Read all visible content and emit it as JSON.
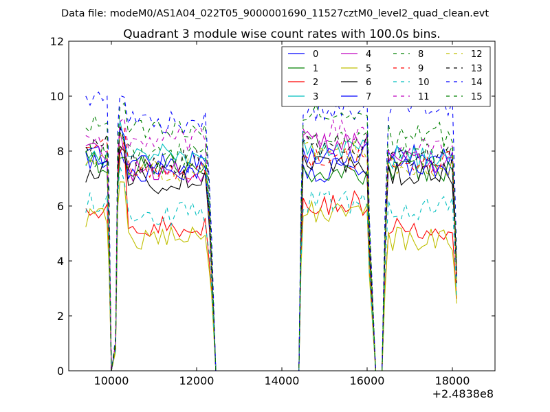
{
  "suptitle": "Data file: modeM0/AS1A04_022T05_9000001690_11527cztM0_level2_quad_clean.evt",
  "chart_data": {
    "type": "line",
    "title": "Quadrant 3 module wise count rates with 100.0s bins.",
    "xlabel": "",
    "ylabel": "",
    "xlim": [
      9000,
      19000
    ],
    "ylim": [
      0,
      12
    ],
    "x_offset_label": "+2.4838e8",
    "xticks": [
      10000,
      12000,
      14000,
      16000,
      18000
    ],
    "xtick_labels": [
      "10000",
      "12000",
      "14000",
      "16000",
      "18000"
    ],
    "yticks": [
      0,
      2,
      4,
      6,
      8,
      10,
      12
    ],
    "ytick_labels": [
      "0",
      "2",
      "4",
      "6",
      "8",
      "10",
      "12"
    ],
    "grid": false,
    "legend_position": "upper-right",
    "legend_columns": 4,
    "series": [
      {
        "name": "0",
        "color": "#0000ff",
        "dash": "solid",
        "levels": [
          7.8,
          7.9,
          7.6,
          7.3,
          7.8
        ]
      },
      {
        "name": "1",
        "color": "#008000",
        "dash": "solid",
        "levels": [
          7.6,
          7.8,
          7.5,
          7.2,
          7.3
        ]
      },
      {
        "name": "2",
        "color": "#ff0000",
        "dash": "solid",
        "levels": [
          6.0,
          8.3,
          5.2,
          6.1,
          5.2
        ]
      },
      {
        "name": "3",
        "color": "#00bfbf",
        "dash": "solid",
        "levels": [
          7.9,
          8.9,
          7.9,
          8.1,
          7.8
        ]
      },
      {
        "name": "4",
        "color": "#bf00bf",
        "dash": "solid",
        "levels": [
          7.9,
          8.7,
          7.3,
          8.3,
          7.6
        ]
      },
      {
        "name": "5",
        "color": "#bfbf00",
        "dash": "solid",
        "levels": [
          5.6,
          7.0,
          4.8,
          5.8,
          4.8
        ]
      },
      {
        "name": "6",
        "color": "#000000",
        "dash": "solid",
        "levels": [
          7.3,
          8.6,
          6.9,
          7.5,
          7.2
        ]
      },
      {
        "name": "7",
        "color": "#0000ff",
        "dash": "solid",
        "levels": [
          7.8,
          8.8,
          7.2,
          7.9,
          7.4
        ]
      },
      {
        "name": "8",
        "color": "#008000",
        "dash": "dashed",
        "levels": [
          7.8,
          9.0,
          7.9,
          8.3,
          7.9
        ]
      },
      {
        "name": "9",
        "color": "#ff0000",
        "dash": "dashed",
        "levels": [
          8.0,
          9.0,
          7.3,
          7.7,
          7.6
        ]
      },
      {
        "name": "10",
        "color": "#00bfbf",
        "dash": "dashed",
        "levels": [
          6.2,
          7.4,
          5.7,
          6.2,
          5.9
        ]
      },
      {
        "name": "11",
        "color": "#bf00bf",
        "dash": "dashed",
        "levels": [
          8.2,
          9.2,
          8.4,
          8.7,
          8.0
        ]
      },
      {
        "name": "12",
        "color": "#bfbf00",
        "dash": "dashed",
        "levels": [
          7.5,
          8.8,
          7.3,
          8.0,
          7.4
        ]
      },
      {
        "name": "13",
        "color": "#000000",
        "dash": "dashed",
        "levels": [
          8.2,
          8.9,
          7.6,
          8.2,
          7.8
        ]
      },
      {
        "name": "14",
        "color": "#0000ff",
        "dash": "dashed",
        "levels": [
          9.9,
          10.4,
          9.1,
          9.5,
          9.6
        ]
      },
      {
        "name": "15",
        "color": "#008000",
        "dash": "dashed",
        "levels": [
          8.9,
          9.8,
          8.7,
          9.3,
          8.6
        ]
      }
    ],
    "segments_x": [
      [
        9400,
        9500,
        9600,
        9700,
        9800,
        9900
      ],
      [
        10200,
        10300,
        10400,
        10500,
        10600,
        10700,
        10800,
        10900,
        11000,
        11100,
        11200,
        11300,
        11400,
        11500,
        11600,
        11700,
        11800,
        11900,
        12000,
        12100,
        12200
      ],
      [
        14500,
        14600,
        14700,
        14800,
        14900,
        15000,
        15100,
        15200,
        15300,
        15400,
        15500,
        15600,
        15700,
        15800,
        15900,
        16000
      ],
      [
        16500,
        16600,
        16700,
        16800,
        16900,
        17000,
        17100,
        17200,
        17300,
        17400,
        17500,
        17600,
        17700,
        17800,
        17900,
        18000
      ]
    ],
    "drop_points": [
      [
        9950,
        5.0
      ],
      [
        10000,
        0.0
      ],
      [
        10100,
        1.0
      ],
      [
        10150,
        7.0
      ],
      [
        12300,
        5.5
      ],
      [
        12350,
        4.0
      ],
      [
        12450,
        0.0
      ],
      [
        14400,
        0.0
      ],
      [
        14450,
        5.0
      ],
      [
        16050,
        4.5
      ],
      [
        16200,
        0.0
      ],
      [
        16350,
        0.0
      ],
      [
        16420,
        4.5
      ],
      [
        18050,
        5.5
      ],
      [
        18100,
        3.5
      ]
    ],
    "zero_span": [
      12450,
      14400
    ]
  }
}
